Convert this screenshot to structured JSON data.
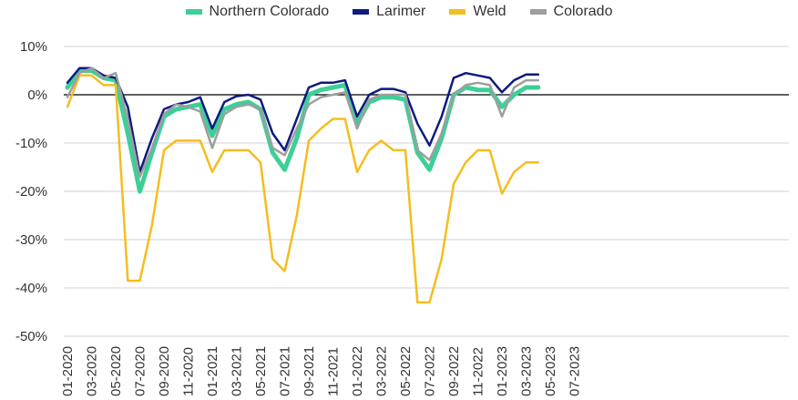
{
  "chart_data": {
    "type": "line",
    "title": "",
    "xlabel": "",
    "ylabel": "",
    "ylim": [
      -50,
      10
    ],
    "yticks": [
      10,
      0,
      -10,
      -20,
      -30,
      -40,
      -50
    ],
    "y_tick_labels": [
      "10%",
      "0%",
      "-10%",
      "-20%",
      "-30%",
      "-40%",
      "-50%"
    ],
    "x_tick_labels": [
      "01-2020",
      "03-2020",
      "05-2020",
      "07-2020",
      "09-2020",
      "11-2020",
      "01-2021",
      "03-2021",
      "05-2021",
      "07-2021",
      "09-2021",
      "11-2021",
      "01-2022",
      "03-2022",
      "05-2022",
      "07-2022",
      "09-2022",
      "11-2022",
      "01-2023",
      "03-2023",
      "05-2023",
      "07-2023"
    ],
    "months": [
      "01-2020",
      "02-2020",
      "03-2020",
      "04-2020",
      "05-2020",
      "06-2020",
      "07-2020",
      "08-2020",
      "09-2020",
      "10-2020",
      "11-2020",
      "12-2020",
      "01-2021",
      "02-2021",
      "03-2021",
      "04-2021",
      "05-2021",
      "06-2021",
      "07-2021",
      "08-2021",
      "09-2021",
      "10-2021",
      "11-2021",
      "12-2021",
      "01-2022",
      "02-2022",
      "03-2022",
      "04-2022",
      "05-2022",
      "06-2022",
      "07-2022",
      "08-2022",
      "09-2022",
      "10-2022",
      "11-2022",
      "12-2022",
      "01-2023",
      "02-2023",
      "03-2023",
      "04-2023"
    ],
    "legend_position": "top",
    "grid": true,
    "series": [
      {
        "name": "Northern Colorado",
        "color": "#3dcf98",
        "width": 5,
        "values": [
          1.5,
          5,
          5,
          3.5,
          3,
          -8,
          -20,
          -12,
          -4.5,
          -3,
          -2.5,
          -2,
          -8.5,
          -3,
          -2,
          -1.5,
          -3,
          -12,
          -15.5,
          -9,
          0,
          1,
          1.5,
          2,
          -6,
          -1.5,
          -0.5,
          -0.5,
          -1,
          -12,
          -15.5,
          -9,
          0,
          1.5,
          1,
          1,
          -2.5,
          0,
          1.5,
          1.5
        ]
      },
      {
        "name": "Larimer",
        "color": "#0e1a7e",
        "width": 2.5,
        "values": [
          2.5,
          5.5,
          5.5,
          4,
          3.5,
          -2.5,
          -16,
          -9,
          -3,
          -2,
          -1.5,
          -0.5,
          -7,
          -1.5,
          -0.3,
          0,
          -1,
          -8,
          -11.5,
          -5,
          1.5,
          2.5,
          2.5,
          3,
          -4.5,
          0,
          1.2,
          1.2,
          0.5,
          -6,
          -10.5,
          -4.5,
          3.5,
          4.5,
          4,
          3.5,
          0.5,
          3,
          4.2,
          4.2
        ]
      },
      {
        "name": "Weld",
        "color": "#f5bd1f",
        "width": 2.5,
        "values": [
          -2.5,
          4,
          4,
          2,
          2,
          -38.5,
          -38.5,
          -27,
          -11.5,
          -9.5,
          -9.5,
          -9.5,
          -16,
          -11.5,
          -11.5,
          -11.5,
          -14,
          -34,
          -36.5,
          -25,
          -9.5,
          -7,
          -5,
          -5,
          -16,
          -11.5,
          -9.5,
          -11.5,
          -11.5,
          -43,
          -43,
          -34,
          -18.5,
          -14,
          -11.5,
          -11.5,
          -20.5,
          -16,
          -14,
          -14
        ]
      },
      {
        "name": "Colorado",
        "color": "#9e9e9e",
        "width": 2.5,
        "values": [
          -0.5,
          4.5,
          5.5,
          3.5,
          4.5,
          -5,
          -17,
          -11,
          -4,
          -2,
          -2.5,
          -3.5,
          -11,
          -4,
          -2.5,
          -2,
          -3,
          -11,
          -12.5,
          -7,
          -2,
          -0.5,
          0,
          0.5,
          -7,
          -1,
          0,
          0,
          0,
          -11.5,
          -13.5,
          -8,
          0,
          2,
          2.5,
          2,
          -4.5,
          1.5,
          3,
          3
        ]
      }
    ]
  }
}
